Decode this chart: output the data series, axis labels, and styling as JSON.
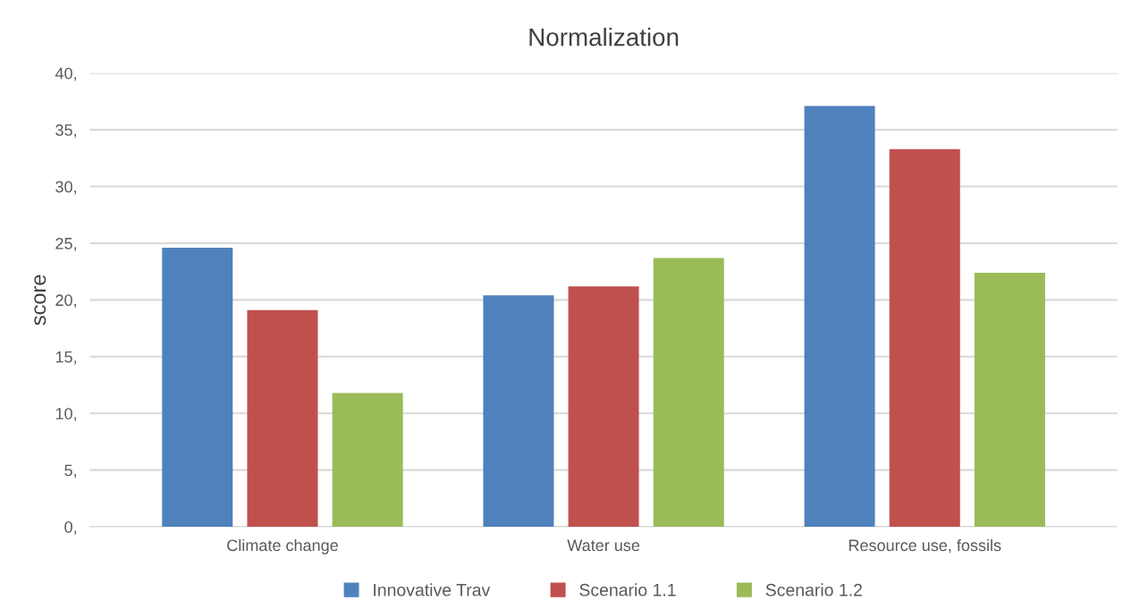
{
  "chart_data": {
    "type": "bar",
    "title": "Normalization",
    "ylabel": "score",
    "categories": [
      "Climate change",
      "Water use",
      "Resource use, fossils"
    ],
    "series": [
      {
        "name": "Innovative Trav",
        "color": "#4f81bd",
        "values": [
          24.6,
          20.4,
          37.1
        ]
      },
      {
        "name": "Scenario 1.1",
        "color": "#c0504d",
        "values": [
          19.1,
          21.2,
          33.3
        ]
      },
      {
        "name": "Scenario 1.2",
        "color": "#9bbb59",
        "values": [
          11.8,
          23.7,
          22.4
        ]
      }
    ],
    "ylim": [
      0,
      40
    ],
    "yticks": [
      {
        "value": 0,
        "label": "0,"
      },
      {
        "value": 5,
        "label": "5,"
      },
      {
        "value": 10,
        "label": "10,"
      },
      {
        "value": 15,
        "label": "15,"
      },
      {
        "value": 20,
        "label": "20,"
      },
      {
        "value": 25,
        "label": "25,"
      },
      {
        "value": 30,
        "label": "30,"
      },
      {
        "value": 35,
        "label": "35,"
      },
      {
        "value": 40,
        "label": "40,"
      }
    ],
    "grid": "y",
    "legend": "bottom"
  }
}
